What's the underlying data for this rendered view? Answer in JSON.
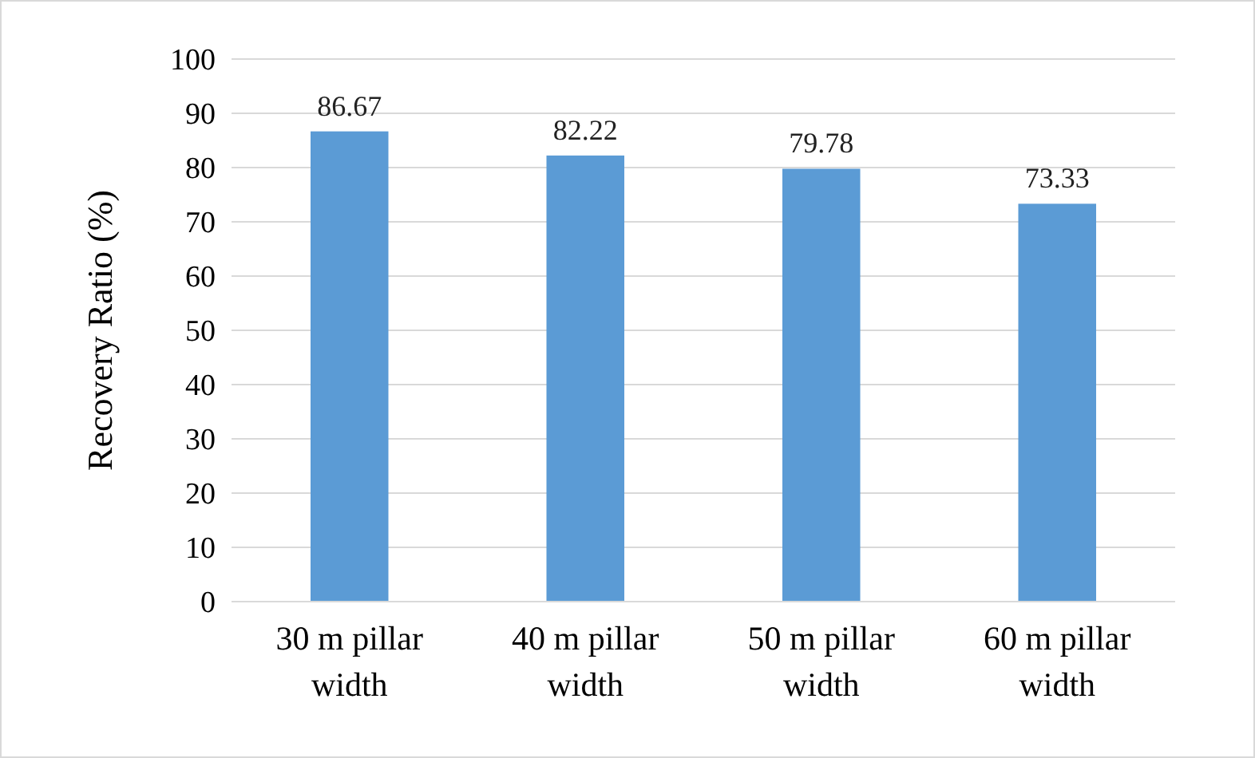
{
  "chart_data": {
    "type": "bar",
    "ylabel": "Recovery Ratio (%)",
    "categories": [
      "30 m pillar width",
      "40 m pillar width",
      "50 m pillar width",
      "60 m pillar width"
    ],
    "values": [
      86.67,
      82.22,
      79.78,
      73.33
    ],
    "color": "#5b9bd5",
    "ylim": [
      0,
      100
    ],
    "yticks": [
      0,
      10,
      20,
      30,
      40,
      50,
      60,
      70,
      80,
      90,
      100
    ],
    "grid": "y",
    "data_labels": true
  }
}
